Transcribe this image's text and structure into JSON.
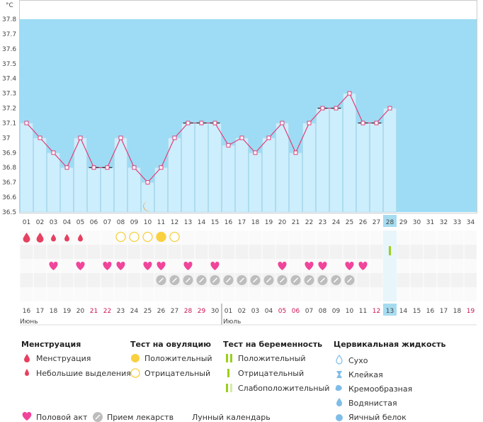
{
  "chart_data": {
    "type": "bar",
    "ylabel": "°C",
    "ylim": [
      36.5,
      37.8
    ],
    "yticks": [
      "36.5",
      "36.6",
      "36.7",
      "36.8",
      "36.9",
      "37",
      "37.1",
      "37.2",
      "37.3",
      "37.4",
      "37.5",
      "37.6",
      "37.7",
      "37.8"
    ],
    "cycle_days": [
      "01",
      "02",
      "03",
      "04",
      "05",
      "06",
      "07",
      "08",
      "09",
      "10",
      "11",
      "12",
      "13",
      "14",
      "15",
      "16",
      "17",
      "18",
      "19",
      "20",
      "21",
      "22",
      "23",
      "24",
      "25",
      "26",
      "27",
      "28",
      "29",
      "30",
      "31",
      "32",
      "33",
      "34"
    ],
    "temperatures": [
      37.1,
      37.0,
      36.9,
      36.8,
      37.0,
      36.8,
      36.8,
      37.0,
      36.8,
      36.7,
      36.8,
      37.0,
      37.1,
      37.1,
      37.1,
      36.95,
      37.0,
      36.9,
      37.0,
      37.1,
      36.9,
      37.1,
      37.2,
      37.2,
      37.3,
      37.1,
      37.1,
      37.2
    ],
    "current_day_index": 27,
    "dates": [
      "16",
      "17",
      "18",
      "19",
      "20",
      "21",
      "22",
      "23",
      "24",
      "25",
      "26",
      "27",
      "28",
      "29",
      "30",
      "01",
      "02",
      "03",
      "04",
      "05",
      "06",
      "07",
      "08",
      "09",
      "10",
      "11",
      "12",
      "13",
      "14",
      "15",
      "16",
      "17",
      "18",
      "19"
    ],
    "red_date_indices": [
      5,
      6,
      12,
      13,
      19,
      20,
      26,
      33
    ],
    "month_labels": [
      {
        "label": "Июнь",
        "index": 0
      },
      {
        "label": "Июль",
        "index": 15
      }
    ],
    "menstruation": [
      "full",
      "full",
      "light",
      "light",
      "light"
    ],
    "ovulation_tests": {
      "7": "negative",
      "8": "negative",
      "9": "negative",
      "10": "positive",
      "11": "negative"
    },
    "pregnancy_tests": {
      "27": "negative"
    },
    "intercourse_days": [
      2,
      4,
      6,
      7,
      9,
      10,
      12,
      14,
      19,
      21,
      22,
      24,
      25
    ],
    "medication_days": [
      10,
      11,
      12,
      13,
      14,
      15,
      16,
      17,
      18,
      19,
      20,
      21,
      22,
      23,
      24
    ],
    "moon_day": 9
  },
  "legend": {
    "menstruation": {
      "title": "Менструация",
      "items": [
        "Менструация",
        "Небольшие выделения"
      ]
    },
    "ovulation": {
      "title": "Тест на овуляцию",
      "items": [
        "Положительный",
        "Отрицательный"
      ]
    },
    "pregnancy": {
      "title": "Тест на беременность",
      "items": [
        "Положительный",
        "Отрицательный",
        "Слабоположительный"
      ]
    },
    "cervical": {
      "title": "Цервикальная жидкость",
      "items": [
        "Сухо",
        "Клейкая",
        "Кремообразная",
        "Водянистая",
        "Яичный белок"
      ]
    },
    "bottom": [
      "Половой акт",
      "Прием лекарств",
      "Лунный календарь"
    ]
  },
  "colors": {
    "sky": "#9ddcf4",
    "bar": "#cdeefc",
    "bar_border": "#a8d6ec",
    "line": "#e0407a",
    "current_day": "#a6dcf0",
    "heart": "#f0459a",
    "drop": "#e64060",
    "ovulation_yellow": "#f8d040",
    "moon": "#f09020",
    "pill": "#bdbdbd",
    "pregnancy_green": "#9ccf1a",
    "cervical_blue": "#7fbde8"
  }
}
